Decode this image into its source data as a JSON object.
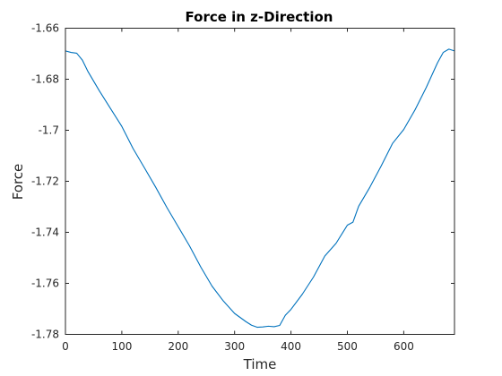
{
  "chart_data": {
    "type": "line",
    "title": "Force in z-Direction",
    "xlabel": "Time",
    "ylabel": "Force",
    "xlim": [
      0,
      690
    ],
    "ylim": [
      -1.78,
      -1.66
    ],
    "x_ticks": [
      0,
      100,
      200,
      300,
      400,
      500,
      600
    ],
    "y_ticks": [
      -1.78,
      -1.76,
      -1.74,
      -1.72,
      -1.7,
      -1.68,
      -1.66
    ],
    "x_tick_labels": [
      "0",
      "100",
      "200",
      "300",
      "400",
      "500",
      "600"
    ],
    "y_tick_labels": [
      "-1.78",
      "-1.76",
      "-1.74",
      "-1.72",
      "-1.7",
      "-1.68",
      "-1.66"
    ],
    "grid": false,
    "series": [
      {
        "name": "",
        "color": "#0072BD",
        "x": [
          0,
          10,
          20,
          30,
          40,
          60,
          80,
          100,
          120,
          140,
          160,
          180,
          200,
          220,
          240,
          260,
          280,
          300,
          320,
          330,
          340,
          350,
          360,
          370,
          380,
          390,
          400,
          420,
          440,
          460,
          480,
          500,
          510,
          520,
          540,
          560,
          580,
          600,
          620,
          640,
          660,
          670,
          680,
          690
        ],
        "y": [
          -1.6689,
          -1.6695,
          -1.6698,
          -1.6725,
          -1.677,
          -1.6845,
          -1.6915,
          -1.6985,
          -1.7072,
          -1.7147,
          -1.7223,
          -1.7303,
          -1.7378,
          -1.7453,
          -1.7536,
          -1.7611,
          -1.7669,
          -1.7718,
          -1.775,
          -1.7764,
          -1.7772,
          -1.7771,
          -1.7768,
          -1.777,
          -1.7765,
          -1.7725,
          -1.7702,
          -1.7643,
          -1.7575,
          -1.7493,
          -1.7443,
          -1.7372,
          -1.736,
          -1.7298,
          -1.7223,
          -1.714,
          -1.7052,
          -1.6997,
          -1.692,
          -1.6832,
          -1.6735,
          -1.6695,
          -1.6682,
          -1.6689
        ]
      }
    ]
  }
}
